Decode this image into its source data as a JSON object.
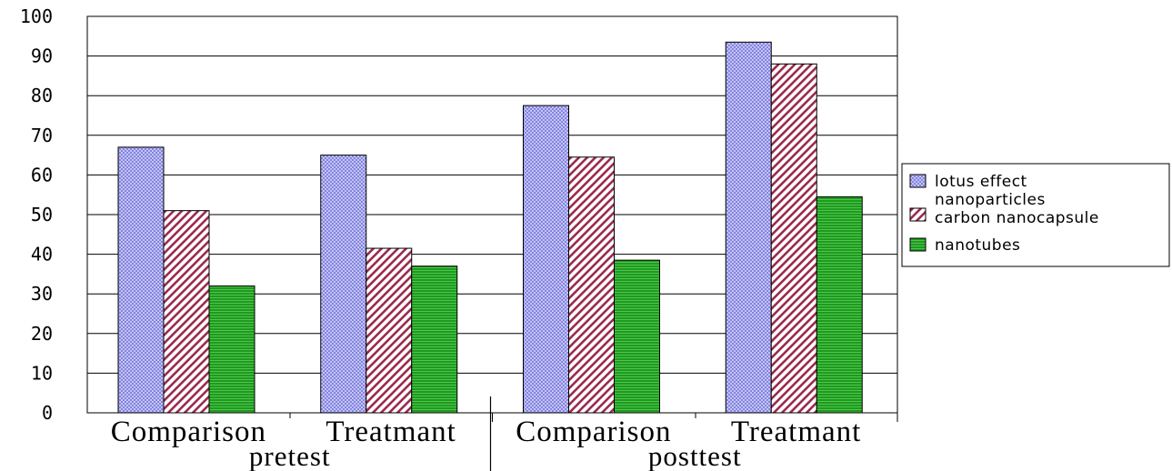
{
  "chart_data": {
    "type": "bar",
    "title": "",
    "xlabel": "",
    "ylabel": "",
    "ylim": [
      0,
      100
    ],
    "yticks": [
      "0",
      "10",
      "20",
      "30",
      "40",
      "50",
      "60",
      "70",
      "80",
      "90",
      "100"
    ],
    "grid": true,
    "legend_position": "right",
    "categories": [
      "Comparison",
      "Treatmant",
      "Comparison",
      "Treatmant"
    ],
    "groups": [
      {
        "label": "pretest",
        "categories": [
          "Comparison",
          "Treatmant"
        ]
      },
      {
        "label": "posttest",
        "categories": [
          "Comparison",
          "Treatmant"
        ]
      }
    ],
    "series": [
      {
        "name": "lotus effect",
        "values": [
          67,
          65,
          77.5,
          93.5
        ],
        "color": "#b8b8f0",
        "pattern": "crosshatch"
      },
      {
        "name": "nanoparticles\ncarbon nanocapsule",
        "values": [
          51,
          41.5,
          64.5,
          88
        ],
        "color": "#9b2c4f",
        "pattern": "diagonal-stripes"
      },
      {
        "name": "nanotubes",
        "values": [
          32,
          37,
          38.5,
          54.5
        ],
        "color": "#22a022",
        "pattern": "horizontal-lines"
      }
    ]
  }
}
